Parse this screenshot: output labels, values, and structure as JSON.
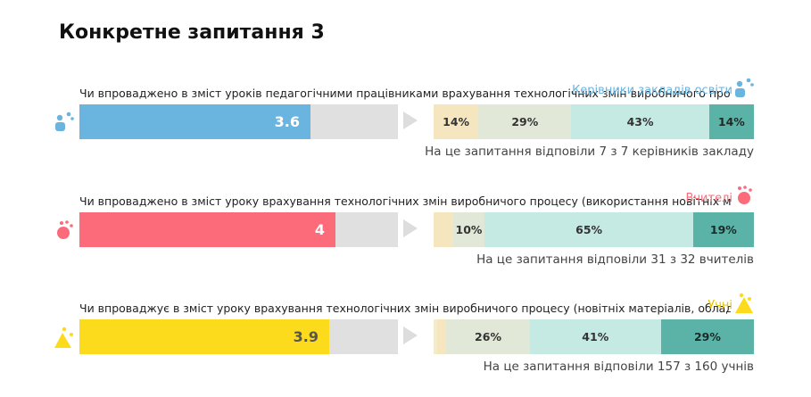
{
  "page": {
    "title": "Конкретне запитання 3"
  },
  "groups": [
    {
      "label": "Керівники закладів освіти",
      "color": "#6ab4e0",
      "text_color": "#ffffff",
      "question": "Чи впроваджено в зміст уроків педагогічними працівниками врахування технологічних змін виробничого процесу",
      "score": "3.6",
      "score_fraction": 0.725,
      "segments": [
        {
          "label": "14%",
          "share": 0.14,
          "class": "c1"
        },
        {
          "label": "29%",
          "share": 0.29,
          "class": "c2"
        },
        {
          "label": "43%",
          "share": 0.43,
          "class": "c3"
        },
        {
          "label": "14%",
          "share": 0.14,
          "class": "c4"
        }
      ],
      "footnote": "На це запитання відповіли 7 з 7 керівників закладу",
      "icon": "people-icon"
    },
    {
      "label": "Вчителі",
      "color": "#fc6b7a",
      "text_color": "#ffffff",
      "question": "Чи впроваджено в зміст уроку врахування технологічних змін виробничого процесу (використання новітніх матеріалів",
      "score": "4",
      "score_fraction": 0.805,
      "segments": [
        {
          "label": "",
          "share": 0.06,
          "class": "c1"
        },
        {
          "label": "10%",
          "share": 0.1,
          "class": "c2"
        },
        {
          "label": "65%",
          "share": 0.65,
          "class": "c3"
        },
        {
          "label": "19%",
          "share": 0.19,
          "class": "c4"
        }
      ],
      "footnote": "На це запитання відповіли 31 з 32 вчителів",
      "icon": "teacher-icon"
    },
    {
      "label": "Учні",
      "color": "#fcdb1c",
      "text_color": "#555555",
      "question": "Чи впроваджує в зміст уроку врахування технологічних змін виробничого процесу (новітніх матеріалів, обладнання",
      "score": "3.9",
      "score_fraction": 0.785,
      "segments": [
        {
          "label": "",
          "share": 0.01,
          "class": "c0"
        },
        {
          "label": "",
          "share": 0.03,
          "class": "c1"
        },
        {
          "label": "26%",
          "share": 0.26,
          "class": "c2"
        },
        {
          "label": "41%",
          "share": 0.41,
          "class": "c3"
        },
        {
          "label": "29%",
          "share": 0.29,
          "class": "c4"
        }
      ],
      "footnote": "На це запитання відповіли 157 з 160 учнів",
      "icon": "students-icon"
    }
  ]
}
